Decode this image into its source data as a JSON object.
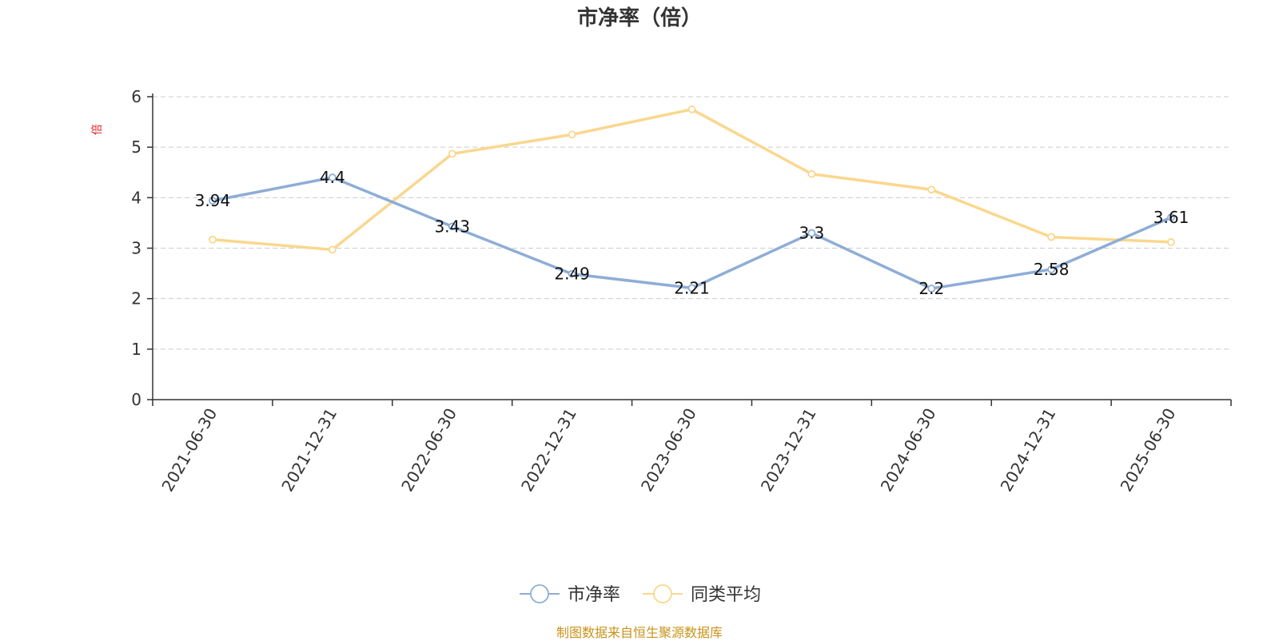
{
  "chart_data": {
    "type": "line",
    "title": "市净率（倍）",
    "ylabel": "倍",
    "categories": [
      "2021-06-30",
      "2021-12-31",
      "2022-06-30",
      "2022-12-31",
      "2023-06-30",
      "2023-12-31",
      "2024-06-30",
      "2024-12-31",
      "2025-06-30"
    ],
    "series": [
      {
        "name": "市净率",
        "values": [
          3.94,
          4.4,
          3.43,
          2.49,
          2.21,
          3.3,
          2.2,
          2.58,
          3.61
        ],
        "labels": [
          "3.94",
          "4.4",
          "3.43",
          "2.49",
          "2.21",
          "3.3",
          "2.2",
          "2.58",
          "3.61"
        ],
        "color": "#8eadd6",
        "show_labels": true
      },
      {
        "name": "同类平均",
        "values": [
          3.17,
          2.97,
          4.87,
          5.25,
          5.75,
          4.47,
          4.16,
          3.22,
          3.12
        ],
        "color": "#fad78e",
        "show_labels": false
      }
    ],
    "ylim": [
      0,
      6
    ],
    "yticks": [
      0,
      1,
      2,
      3,
      4,
      5,
      6
    ],
    "grid": true,
    "legend_position": "bottom-center",
    "ylabel_color": "#e02020"
  },
  "source_note": {
    "text": "制图数据来自恒生聚源数据库",
    "color": "#c8931a"
  }
}
